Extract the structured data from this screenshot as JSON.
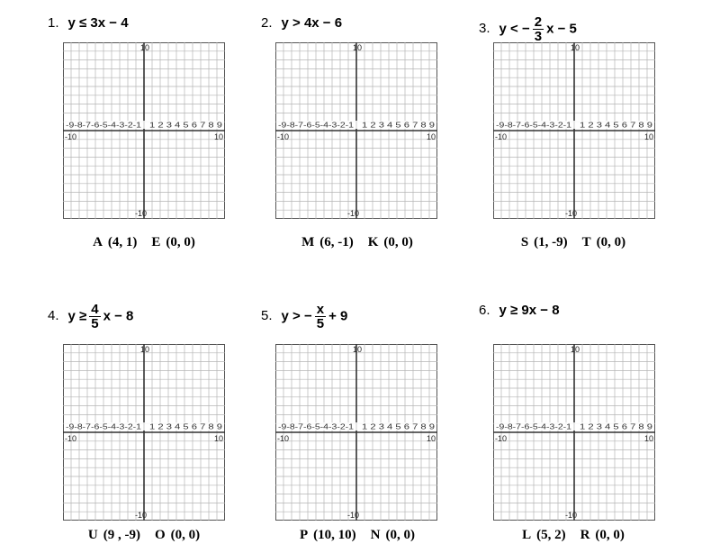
{
  "problems": [
    {
      "number": "1.",
      "inequality": {
        "lhs": "y ≤ 3x − 4"
      },
      "options": [
        {
          "letter": "A",
          "point": "(4, 1)"
        },
        {
          "letter": "E",
          "point": "(0, 0)"
        }
      ]
    },
    {
      "number": "2.",
      "inequality": {
        "lhs": "y > 4x − 6"
      },
      "options": [
        {
          "letter": "M",
          "point": "(6, -1)"
        },
        {
          "letter": "K",
          "point": "(0, 0)"
        }
      ]
    },
    {
      "number": "3.",
      "inequality": {
        "lhs": "y < −",
        "frac_num": "2",
        "frac_den": "3",
        "rhs": "x − 5"
      },
      "options": [
        {
          "letter": "S",
          "point": "(1, -9)"
        },
        {
          "letter": "T",
          "point": "(0, 0)"
        }
      ]
    },
    {
      "number": "4.",
      "inequality": {
        "lhs": "y ≥",
        "frac_num": "4",
        "frac_den": "5",
        "rhs": "x − 8"
      },
      "options": [
        {
          "letter": "U",
          "point": "(9 , -9)"
        },
        {
          "letter": "O",
          "point": "(0, 0)"
        }
      ]
    },
    {
      "number": "5.",
      "inequality": {
        "lhs": "y > −",
        "frac_num": "x",
        "frac_den": "5",
        "rhs": "+ 9"
      },
      "options": [
        {
          "letter": "P",
          "point": "(10, 10)"
        },
        {
          "letter": "N",
          "point": "(0, 0)"
        }
      ]
    },
    {
      "number": "6.",
      "inequality": {
        "lhs": "y ≥ 9x − 8"
      },
      "options": [
        {
          "letter": "L",
          "point": "(5, 2)"
        },
        {
          "letter": "R",
          "point": "(0, 0)"
        }
      ]
    }
  ],
  "grid": {
    "x_neg_ticks": "-9-8-7-6-5-4-3-2-1",
    "x_pos_ticks": "1 2 3 4 5 6 7 8 9",
    "x_min_label": "-10",
    "x_max_label": "10",
    "y_max_label": "10",
    "y_min_label": "-10"
  }
}
